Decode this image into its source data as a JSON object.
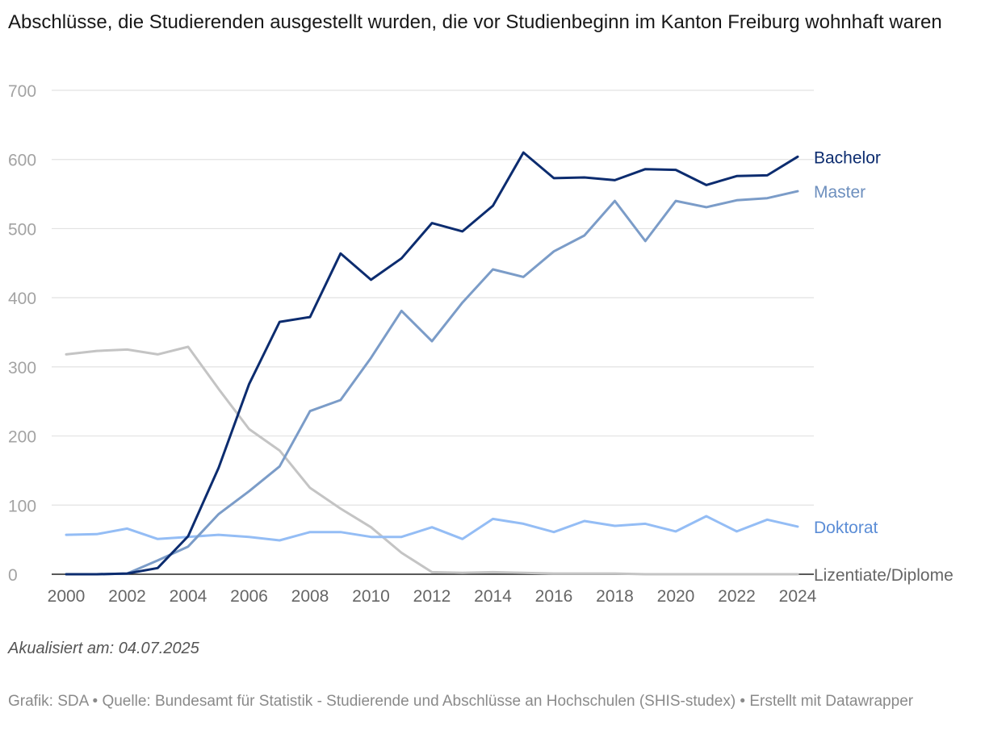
{
  "header": {
    "title": "Abschlüsse, die Studierenden ausgestellt wurden, die vor Studienbeginn im Kanton Freiburg wohnhaft waren"
  },
  "chart_data": {
    "type": "line",
    "title": "Abschlüsse, die Studierenden ausgestellt wurden, die vor Studienbeginn im Kanton Freiburg wohnhaft waren",
    "xlabel": "",
    "ylabel": "",
    "ylim": [
      0,
      700
    ],
    "xlim": [
      2000,
      2024
    ],
    "grid": true,
    "y_ticks": [
      0,
      100,
      200,
      300,
      400,
      500,
      600,
      700
    ],
    "x_ticks": [
      2000,
      2002,
      2004,
      2006,
      2008,
      2010,
      2012,
      2014,
      2016,
      2018,
      2020,
      2022,
      2024
    ],
    "x": [
      2000,
      2001,
      2002,
      2003,
      2004,
      2005,
      2006,
      2007,
      2008,
      2009,
      2010,
      2011,
      2012,
      2013,
      2014,
      2015,
      2016,
      2017,
      2018,
      2019,
      2020,
      2021,
      2022,
      2023,
      2024
    ],
    "series": [
      {
        "name": "Lizentiate/Diplome",
        "color": "#c4c4c4",
        "label_color": "#666666",
        "values": [
          318,
          323,
          325,
          318,
          329,
          268,
          210,
          179,
          125,
          95,
          68,
          31,
          3,
          2,
          3,
          2,
          1,
          1,
          1,
          0,
          0,
          0,
          0,
          0,
          0
        ]
      },
      {
        "name": "Doktorat",
        "color": "#94bdf5",
        "label_color": "#5b8dd6",
        "values": [
          57,
          58,
          66,
          51,
          54,
          57,
          54,
          49,
          61,
          61,
          54,
          54,
          68,
          51,
          80,
          73,
          61,
          77,
          70,
          73,
          62,
          84,
          62,
          79,
          69
        ]
      },
      {
        "name": "Master",
        "color": "#7b9cc8",
        "label_color": "#6d8fbe",
        "values": [
          0,
          0,
          1,
          20,
          40,
          87,
          120,
          156,
          236,
          252,
          313,
          381,
          337,
          393,
          441,
          430,
          467,
          490,
          540,
          482,
          540,
          531,
          541,
          544,
          554
        ]
      },
      {
        "name": "Bachelor",
        "color": "#0c2c6f",
        "label_color": "#0c2c6f",
        "values": [
          0,
          0,
          1,
          9,
          55,
          154,
          275,
          365,
          372,
          464,
          426,
          457,
          508,
          496,
          533,
          610,
          573,
          574,
          570,
          586,
          585,
          563,
          576,
          577,
          604
        ]
      }
    ]
  },
  "notes": {
    "updated": "Akualisiert am: 04.07.2025",
    "source": "Grafik: SDA • Quelle: Bundesamt für Statistik - Studierende und Abschlüsse an Hochschulen (SHIS-studex) • Erstellt mit Datawrapper"
  }
}
